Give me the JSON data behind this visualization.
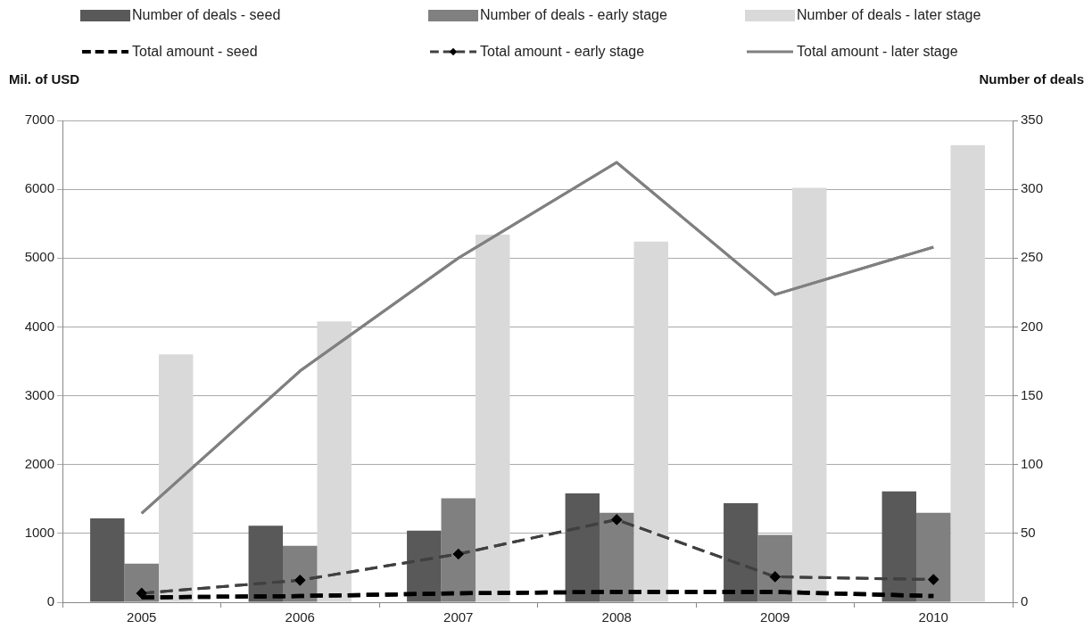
{
  "chart_data": {
    "type": "bar",
    "ylabel": "Mil. of USD",
    "y2label": "Number of deals",
    "categories": [
      "2005",
      "2006",
      "2007",
      "2008",
      "2009",
      "2010"
    ],
    "series": [
      {
        "name": "Number of deals - seed",
        "axis": "y2",
        "color": "#595959",
        "values": [
          61,
          55.5,
          52,
          79,
          72,
          80.5
        ]
      },
      {
        "name": "Number of deals - early stage",
        "axis": "y2",
        "color": "#808080",
        "values": [
          28,
          41,
          75.5,
          65,
          49,
          65
        ]
      },
      {
        "name": "Number of deals - later stage",
        "axis": "y2",
        "color": "#d9d9d9",
        "values": [
          180,
          204,
          267,
          262,
          301,
          332
        ]
      },
      {
        "name": "Total amount - seed",
        "type": "line",
        "color": "#000000",
        "line_style": "dashed",
        "marker": "none",
        "values": [
          70,
          90,
          130,
          150,
          150,
          90
        ]
      },
      {
        "name": "Total amount - early stage",
        "type": "line",
        "color": "#404040",
        "line_style": "dashed",
        "marker": "diamond",
        "values": [
          130,
          320,
          700,
          1200,
          370,
          330
        ]
      },
      {
        "name": "Total amount - later stage",
        "type": "line",
        "color": "#808080",
        "line_style": "solid",
        "marker": "none",
        "values": [
          1290,
          3360,
          5000,
          6390,
          4470,
          5160
        ]
      }
    ],
    "ylim": [
      0,
      7000
    ],
    "yticks": [
      0,
      1000,
      2000,
      3000,
      4000,
      5000,
      6000,
      7000
    ],
    "y2lim": [
      0,
      350
    ],
    "y2ticks": [
      0,
      50,
      100,
      150,
      200,
      250,
      300,
      350
    ],
    "grid": "y",
    "legend": "top"
  }
}
